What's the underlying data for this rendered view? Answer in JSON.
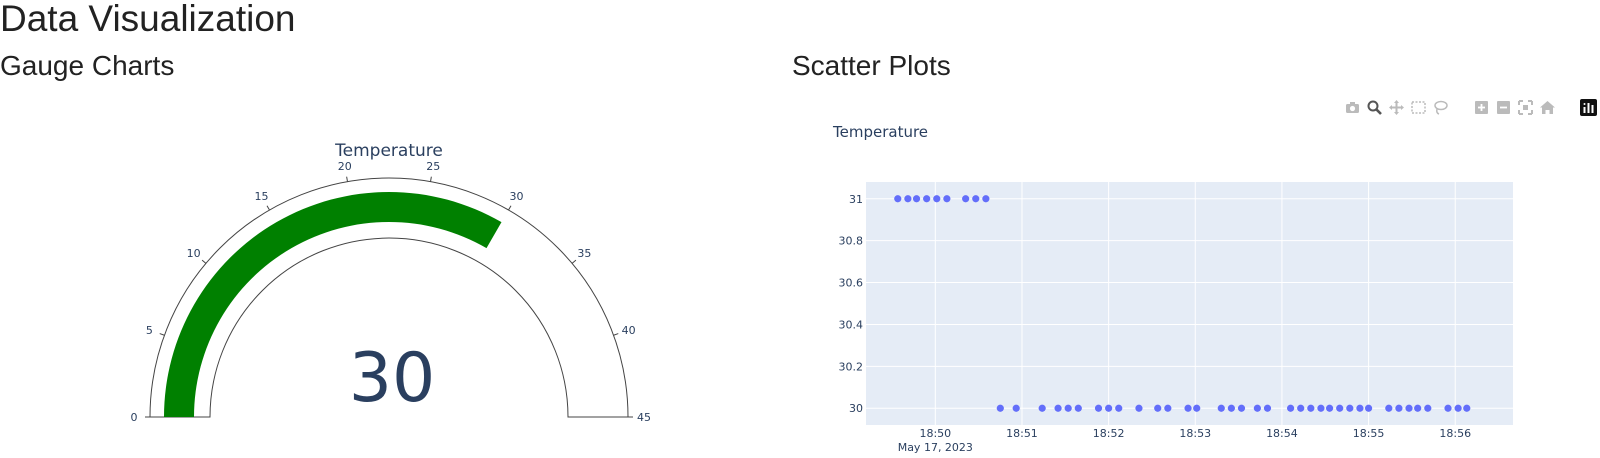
{
  "page": {
    "title": "Data Visualization"
  },
  "sections": [
    {
      "title": "Gauge Charts"
    },
    {
      "title": "Scatter Plots"
    }
  ],
  "gauge": {
    "title": "Temperature",
    "value": 30,
    "value_text": "30",
    "range": [
      0,
      45
    ],
    "ticks": [
      "0",
      "5",
      "10",
      "15",
      "20",
      "25",
      "30",
      "35",
      "40",
      "45"
    ],
    "bar_color": "#008000"
  },
  "modebar": {
    "buttons": [
      {
        "name": "camera-icon"
      },
      {
        "name": "zoom-icon",
        "active": true
      },
      {
        "name": "pan-icon"
      },
      {
        "name": "box-select-icon"
      },
      {
        "name": "lasso-select-icon"
      },
      {
        "name": "zoom-in-icon"
      },
      {
        "name": "zoom-out-icon"
      },
      {
        "name": "autoscale-icon"
      },
      {
        "name": "reset-axes-icon"
      },
      {
        "name": "plotly-logo-icon"
      }
    ]
  },
  "chart_data": {
    "type": "scatter",
    "title": "Temperature",
    "xlabel": "",
    "ylabel": "",
    "xlim": [
      "2023-05-17 18:49:12",
      "2023-05-17 18:56:40"
    ],
    "ylim": [
      29.92,
      31.08
    ],
    "x_ticks": [
      "18:50",
      "18:51",
      "18:52",
      "18:53",
      "18:54",
      "18:55",
      "18:56"
    ],
    "x_tick_sublabel": "May 17, 2023",
    "y_ticks": [
      "30",
      "30.2",
      "30.4",
      "30.6",
      "30.8",
      "31"
    ],
    "grid": true,
    "marker_color": "#636efa",
    "background": "#e5ecf6",
    "series": [
      {
        "x": [
          "2023-05-17 18:49:34",
          "2023-05-17 18:49:41",
          "2023-05-17 18:49:47",
          "2023-05-17 18:49:54",
          "2023-05-17 18:50:01",
          "2023-05-17 18:50:08",
          "2023-05-17 18:50:21",
          "2023-05-17 18:50:28",
          "2023-05-17 18:50:35",
          "2023-05-17 18:50:45",
          "2023-05-17 18:50:56",
          "2023-05-17 18:51:14",
          "2023-05-17 18:51:25",
          "2023-05-17 18:51:32",
          "2023-05-17 18:51:39",
          "2023-05-17 18:51:53",
          "2023-05-17 18:52:00",
          "2023-05-17 18:52:07",
          "2023-05-17 18:52:21",
          "2023-05-17 18:52:34",
          "2023-05-17 18:52:41",
          "2023-05-17 18:52:55",
          "2023-05-17 18:53:01",
          "2023-05-17 18:53:18",
          "2023-05-17 18:53:25",
          "2023-05-17 18:53:32",
          "2023-05-17 18:53:43",
          "2023-05-17 18:53:50",
          "2023-05-17 18:54:06",
          "2023-05-17 18:54:13",
          "2023-05-17 18:54:20",
          "2023-05-17 18:54:27",
          "2023-05-17 18:54:33",
          "2023-05-17 18:54:40",
          "2023-05-17 18:54:47",
          "2023-05-17 18:54:54",
          "2023-05-17 18:55:00",
          "2023-05-17 18:55:14",
          "2023-05-17 18:55:21",
          "2023-05-17 18:55:28",
          "2023-05-17 18:55:34",
          "2023-05-17 18:55:41",
          "2023-05-17 18:55:55",
          "2023-05-17 18:56:02",
          "2023-05-17 18:56:08"
        ],
        "y": [
          31,
          31,
          31,
          31,
          31,
          31,
          31,
          31,
          31,
          30,
          30,
          30,
          30,
          30,
          30,
          30,
          30,
          30,
          30,
          30,
          30,
          30,
          30,
          30,
          30,
          30,
          30,
          30,
          30,
          30,
          30,
          30,
          30,
          30,
          30,
          30,
          30,
          30,
          30,
          30,
          30,
          30,
          30,
          30,
          30
        ]
      }
    ]
  }
}
